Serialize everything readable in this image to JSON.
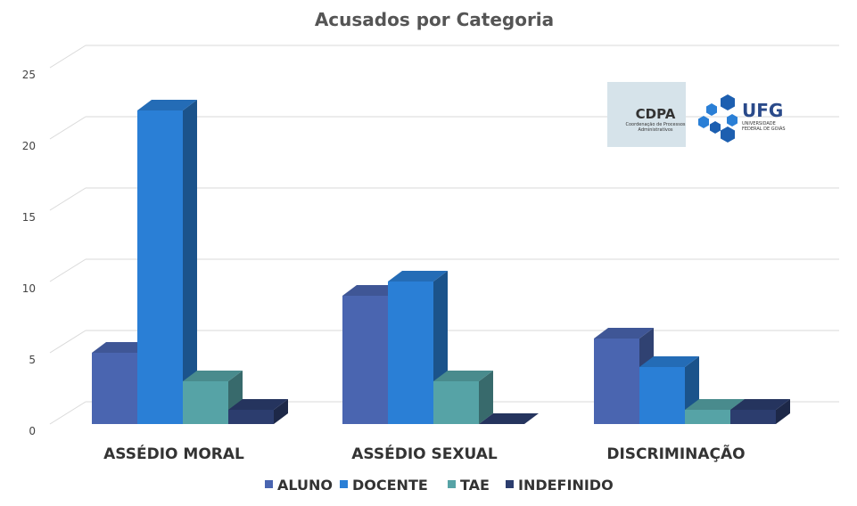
{
  "chart_data": {
    "type": "bar",
    "title": "Acusados por Categoria",
    "categories": [
      "ASSÉDIO MORAL",
      "ASSÉDIO SEXUAL",
      "DISCRIMINAÇÃO"
    ],
    "series": [
      {
        "name": "ALUNO",
        "values": [
          5,
          9,
          6
        ],
        "color": "#4a65b0"
      },
      {
        "name": "DOCENTE",
        "values": [
          22,
          10,
          4
        ],
        "color": "#2a7fd6"
      },
      {
        "name": "TAE",
        "values": [
          3,
          3,
          1
        ],
        "color": "#56a3a6"
      },
      {
        "name": "INDEFINIDO",
        "values": [
          1,
          0,
          1
        ],
        "color": "#2c3d6e"
      }
    ],
    "yticks": [
      "0",
      "5",
      "10",
      "15",
      "20",
      "25"
    ],
    "ylim": [
      0,
      25
    ],
    "grid": true,
    "legend": "bottom",
    "style": "3d"
  },
  "logos": {
    "cdpa_title": "CDPA",
    "cdpa_subtitle_1": "Coordenação de Processos",
    "cdpa_subtitle_2": "Administrativos",
    "ufg_title": "UFG",
    "ufg_subtitle_1": "UNIVERSIDADE",
    "ufg_subtitle_2": "FEDERAL DE GOIÁS"
  }
}
